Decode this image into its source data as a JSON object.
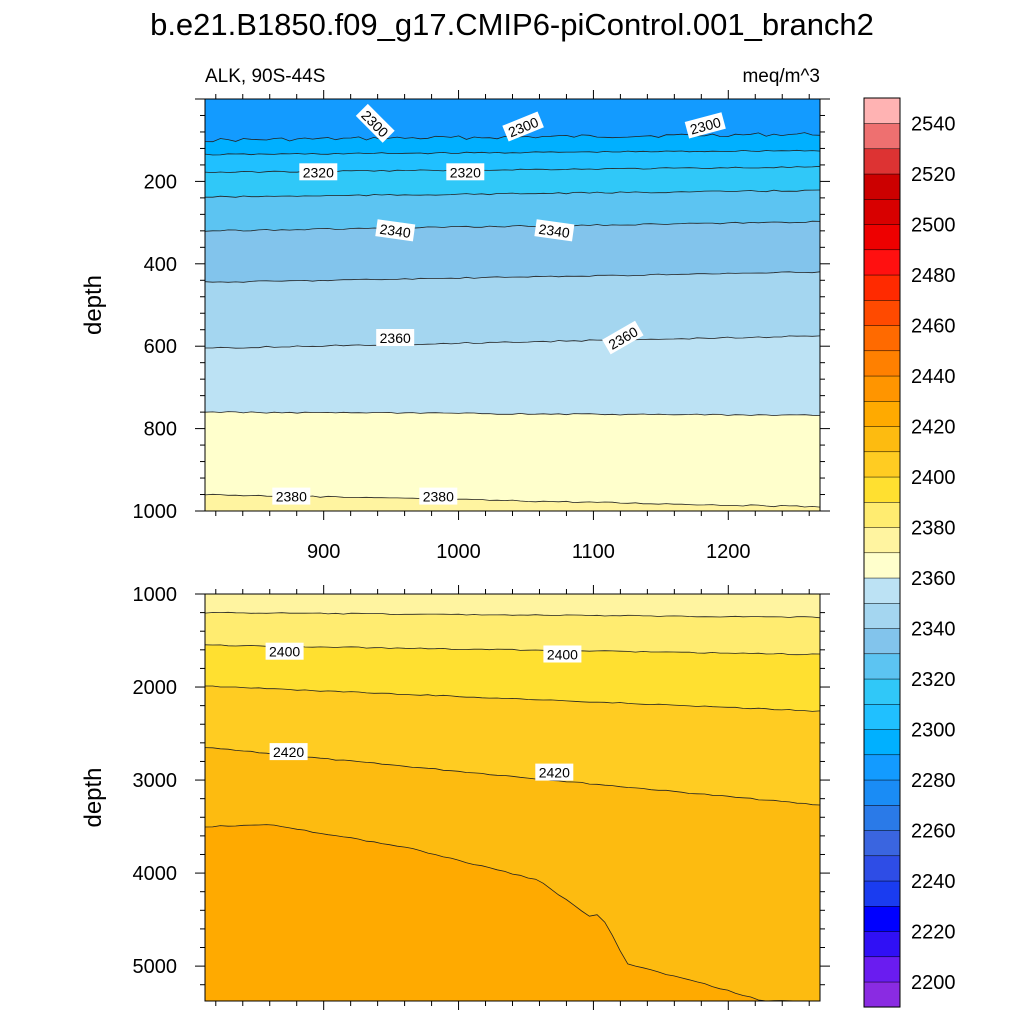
{
  "title": "b.e21.B1850.f09_g17.CMIP6-piControl.001_branch2",
  "left_string": "ALK, 90S-44S",
  "right_string": "meq/m^3",
  "chart_data": [
    {
      "type": "heatmap",
      "panel": "upper",
      "ylabel": "depth",
      "xlim": [
        812,
        1268
      ],
      "ylim": [
        1000,
        0
      ],
      "x_ticks": [
        900,
        1000,
        1100,
        1200
      ],
      "x_tick_labels": [
        "900",
        "1000",
        "1100",
        "1200"
      ],
      "y_ticks": [
        200,
        400,
        600,
        800,
        1000
      ],
      "y_tick_labels": [
        "200",
        "400",
        "600",
        "800",
        "1000"
      ],
      "contours": [
        {
          "level": 2300,
          "depth": [
            100,
            85
          ]
        },
        {
          "level": 2310,
          "depth": [
            135,
            125
          ]
        },
        {
          "level": 2320,
          "depth": [
            178,
            165
          ]
        },
        {
          "level": 2330,
          "depth": [
            238,
            222
          ]
        },
        {
          "level": 2340,
          "depth": [
            320,
            298
          ]
        },
        {
          "level": 2350,
          "depth": [
            445,
            420
          ]
        },
        {
          "level": 2360,
          "depth": [
            605,
            575
          ]
        },
        {
          "level": 2370,
          "depth": [
            760,
            768
          ]
        },
        {
          "level": 2380,
          "depth": [
            960,
            990
          ]
        }
      ],
      "contour_labels": [
        {
          "text": "2300",
          "x": 938,
          "depth": 60,
          "angle": 45
        },
        {
          "text": "2300",
          "x": 1048,
          "depth": 68,
          "angle": -22
        },
        {
          "text": "2300",
          "x": 1183,
          "depth": 65,
          "angle": -15
        },
        {
          "text": "2320",
          "x": 896,
          "depth": 178,
          "angle": 0
        },
        {
          "text": "2320",
          "x": 1005,
          "depth": 178,
          "angle": 0
        },
        {
          "text": "2340",
          "x": 953,
          "depth": 320,
          "angle": 8
        },
        {
          "text": "2340",
          "x": 1071,
          "depth": 320,
          "angle": 8
        },
        {
          "text": "2360",
          "x": 953,
          "depth": 580,
          "angle": 0
        },
        {
          "text": "2360",
          "x": 1122,
          "depth": 580,
          "angle": -30
        },
        {
          "text": "2380",
          "x": 876,
          "depth": 965,
          "angle": 0
        },
        {
          "text": "2380",
          "x": 985,
          "depth": 965,
          "angle": 0
        }
      ]
    },
    {
      "type": "heatmap",
      "panel": "lower",
      "ylabel": "depth",
      "xlim": [
        812,
        1268
      ],
      "ylim": [
        5375,
        1000
      ],
      "y_ticks": [
        1000,
        2000,
        3000,
        4000,
        5000
      ],
      "y_tick_labels": [
        "1000",
        "2000",
        "3000",
        "4000",
        "5000"
      ],
      "contours": [
        {
          "level": 2390,
          "depth": [
            1200,
            1250
          ]
        },
        {
          "level": 2400,
          "depth": [
            1550,
            1650
          ]
        },
        {
          "level": 2410,
          "depth": [
            1990,
            2260
          ]
        },
        {
          "level": 2420,
          "depth": [
            2650,
            3270
          ]
        },
        {
          "level": 2430,
          "depth_at_x": [
            [
              812,
              3500
            ],
            [
              860,
              3480
            ],
            [
              960,
              3720
            ],
            [
              1060,
              4080
            ],
            [
              1100,
              4500
            ],
            [
              1104,
              4420
            ],
            [
              1110,
              4560
            ],
            [
              1125,
              4980
            ],
            [
              1180,
              5180
            ],
            [
              1226,
              5375
            ]
          ]
        }
      ],
      "contour_labels": [
        {
          "text": "2400",
          "x": 871,
          "depth": 1620,
          "angle": 0
        },
        {
          "text": "2400",
          "x": 1077,
          "depth": 1650,
          "angle": 0
        },
        {
          "text": "2420",
          "x": 874,
          "depth": 2700,
          "angle": 0
        },
        {
          "text": "2420",
          "x": 1071,
          "depth": 2920,
          "angle": 0
        }
      ]
    }
  ],
  "colorbar": {
    "levels": [
      2200,
      2210,
      2220,
      2230,
      2240,
      2250,
      2260,
      2270,
      2280,
      2290,
      2300,
      2310,
      2320,
      2330,
      2340,
      2350,
      2360,
      2370,
      2380,
      2390,
      2400,
      2410,
      2420,
      2430,
      2440,
      2450,
      2460,
      2470,
      2480,
      2490,
      2500,
      2510,
      2520,
      2530,
      2540,
      2550
    ],
    "labels": [
      "2200",
      "2220",
      "2240",
      "2260",
      "2280",
      "2300",
      "2320",
      "2340",
      "2360",
      "2380",
      "2400",
      "2420",
      "2440",
      "2460",
      "2480",
      "2500",
      "2520",
      "2540"
    ],
    "colors": [
      "#8a2be2",
      "#6a1cf0",
      "#3010f5",
      "#0000ff",
      "#1a3cf0",
      "#2e4de6",
      "#3a65e0",
      "#2a7ae8",
      "#1a8cf5",
      "#139bff",
      "#00b0ff",
      "#20c0ff",
      "#30c8f8",
      "#5cc4f2",
      "#82c4ec",
      "#a4d6f0",
      "#bce2f4",
      "#ffffcc",
      "#fff4a0",
      "#ffec70",
      "#ffe030",
      "#ffcc22",
      "#fdbb10",
      "#ffaa00",
      "#ff9500",
      "#ff8000",
      "#ff6a00",
      "#ff4a00",
      "#ff2a00",
      "#ff1010",
      "#ee0000",
      "#d80000",
      "#cc0000",
      "#dd3333",
      "#ee7070",
      "#ffb3b3"
    ]
  }
}
